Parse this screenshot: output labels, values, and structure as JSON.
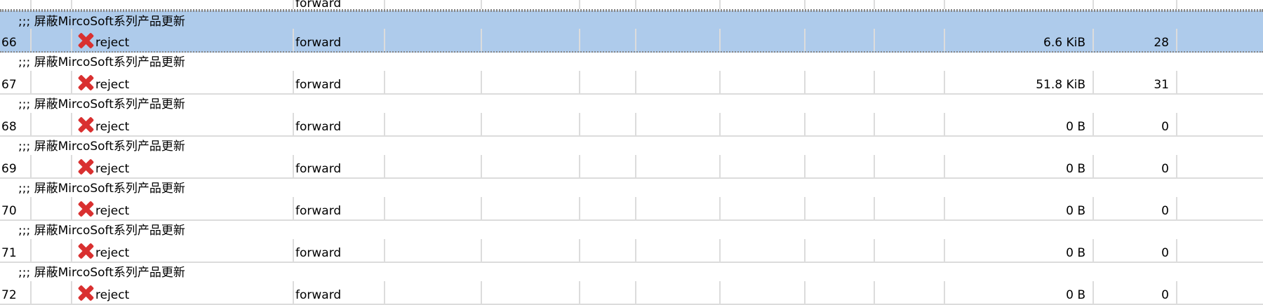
{
  "partial_top_row": {
    "chain": "forward"
  },
  "rules": [
    {
      "comment": ";;; 屏蔽MircoSoft系列产品更新",
      "number": "66",
      "action": "reject",
      "action_icon": "reject-x-icon",
      "chain": "forward",
      "bytes": "6.6 KiB",
      "packets": "28",
      "selected": true
    },
    {
      "comment": ";;; 屏蔽MircoSoft系列产品更新",
      "number": "67",
      "action": "reject",
      "action_icon": "reject-x-icon",
      "chain": "forward",
      "bytes": "51.8 KiB",
      "packets": "31"
    },
    {
      "comment": ";;; 屏蔽MircoSoft系列产品更新",
      "number": "68",
      "action": "reject",
      "action_icon": "reject-x-icon",
      "chain": "forward",
      "bytes": "0 B",
      "packets": "0"
    },
    {
      "comment": ";;; 屏蔽MircoSoft系列产品更新",
      "number": "69",
      "action": "reject",
      "action_icon": "reject-x-icon",
      "chain": "forward",
      "bytes": "0 B",
      "packets": "0"
    },
    {
      "comment": ";;; 屏蔽MircoSoft系列产品更新",
      "number": "70",
      "action": "reject",
      "action_icon": "reject-x-icon",
      "chain": "forward",
      "bytes": "0 B",
      "packets": "0"
    },
    {
      "comment": ";;; 屏蔽MircoSoft系列产品更新",
      "number": "71",
      "action": "reject",
      "action_icon": "reject-x-icon",
      "chain": "forward",
      "bytes": "0 B",
      "packets": "0"
    },
    {
      "comment": ";;; 屏蔽MircoSoft系列产品更新",
      "number": "72",
      "action": "reject",
      "action_icon": "reject-x-icon",
      "chain": "forward",
      "bytes": "0 B",
      "packets": "0"
    }
  ],
  "colors": {
    "selection": "#aecbeb",
    "grid": "#dcdcdc",
    "reject_icon": "#d93030"
  }
}
